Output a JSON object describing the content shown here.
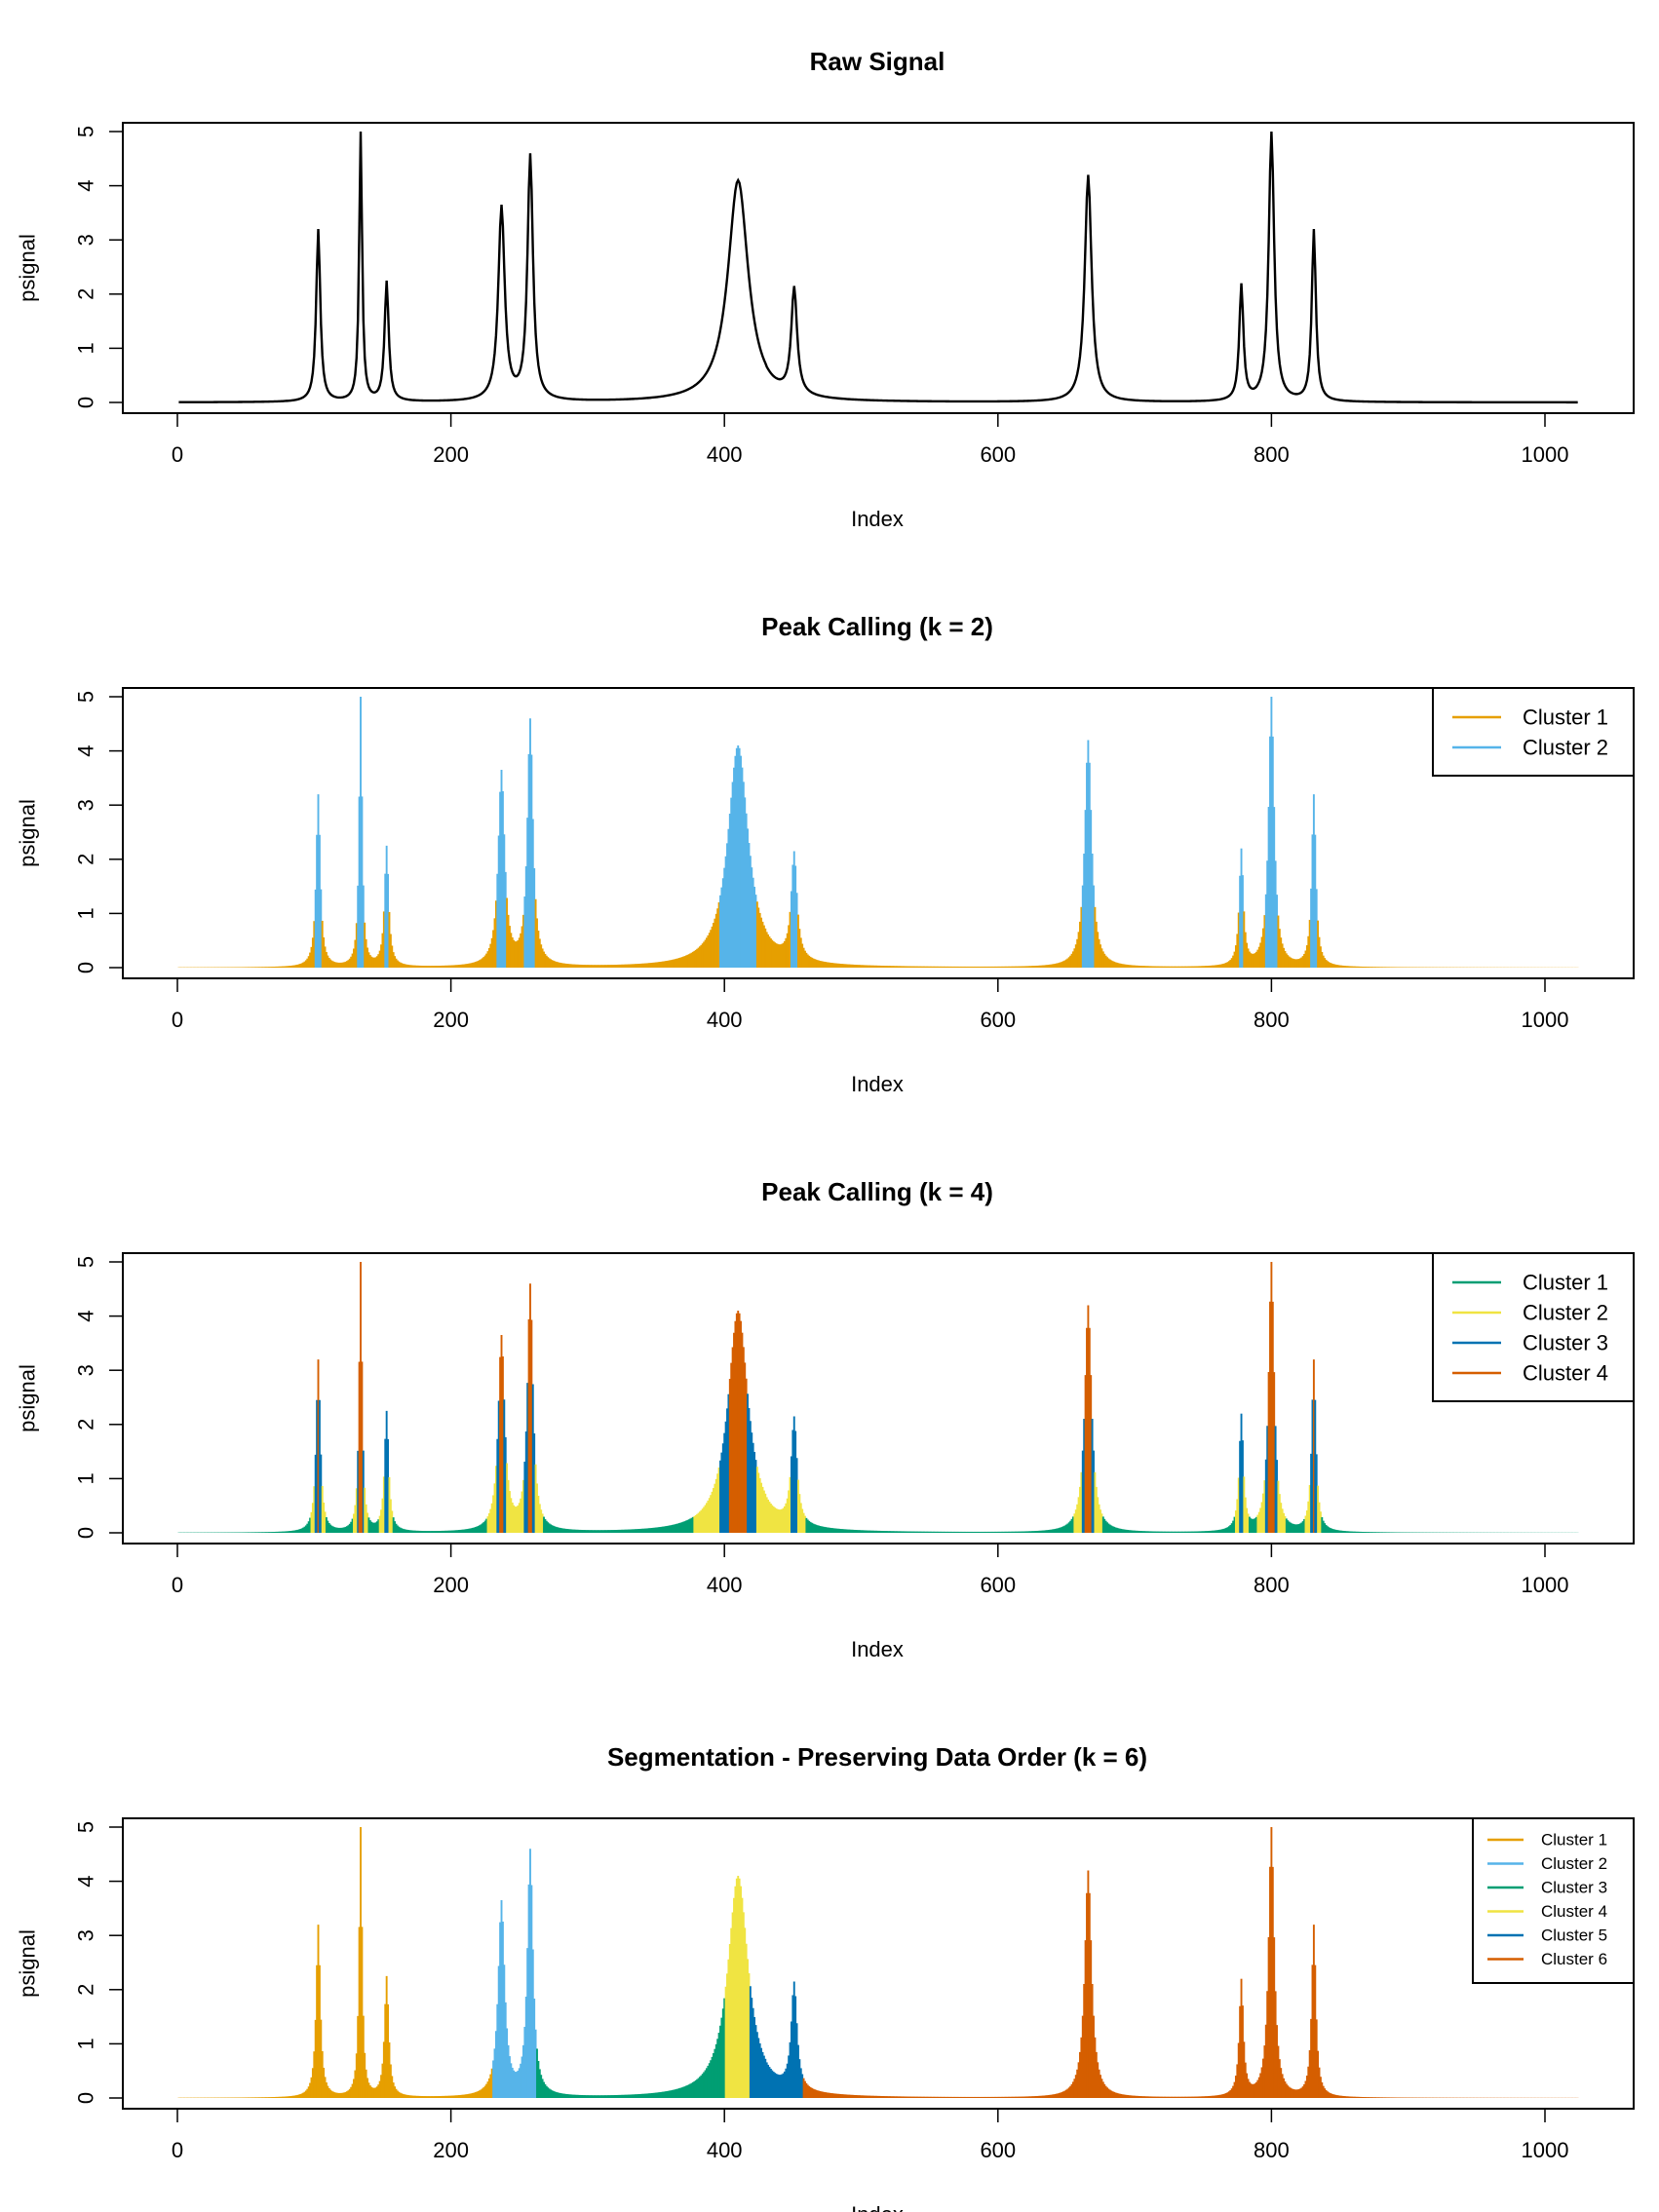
{
  "colors": {
    "black": "#000000",
    "orange": "#E69F00",
    "skyblue": "#56B4E9",
    "green": "#009E73",
    "yellow": "#F0E442",
    "blue": "#0072B2",
    "vermillion": "#D55E00"
  },
  "chart_data": [
    {
      "type": "line",
      "title": "Raw Signal",
      "xlabel": "Index",
      "ylabel": "psignal",
      "xlim": [
        1,
        1024
      ],
      "ylim": [
        0,
        5
      ],
      "xticks": [
        "0",
        "200",
        "400",
        "600",
        "800",
        "1000"
      ],
      "yticks": [
        "0",
        "1",
        "2",
        "3",
        "4",
        "5"
      ],
      "signal_peaks": [
        {
          "x": 103,
          "y": 3.2
        },
        {
          "x": 134,
          "y": 5.0
        },
        {
          "x": 153,
          "y": 2.25
        },
        {
          "x": 237,
          "y": 3.65
        },
        {
          "x": 258,
          "y": 4.6
        },
        {
          "x": 410,
          "y": 4.1
        },
        {
          "x": 451,
          "y": 2.15
        },
        {
          "x": 666,
          "y": 4.2
        },
        {
          "x": 778,
          "y": 2.2
        },
        {
          "x": 800,
          "y": 5.0
        },
        {
          "x": 831,
          "y": 3.2
        }
      ],
      "color": "#000000"
    },
    {
      "type": "bar",
      "title": "Peak Calling (k = 2)",
      "xlabel": "Index",
      "ylabel": "psignal",
      "xlim": [
        1,
        1024
      ],
      "ylim": [
        0,
        5
      ],
      "xticks": [
        "0",
        "200",
        "400",
        "600",
        "800",
        "1000"
      ],
      "yticks": [
        "0",
        "1",
        "2",
        "3",
        "4",
        "5"
      ],
      "legend": "top-right",
      "clustering": "by value",
      "series": [
        {
          "name": "Cluster 1",
          "color": "#E69F00",
          "value_range": [
            0,
            1.3
          ]
        },
        {
          "name": "Cluster 2",
          "color": "#56B4E9",
          "value_range": [
            1.3,
            5
          ]
        }
      ]
    },
    {
      "type": "bar",
      "title": "Peak Calling (k = 4)",
      "xlabel": "Index",
      "ylabel": "psignal",
      "xlim": [
        1,
        1024
      ],
      "ylim": [
        0,
        5
      ],
      "xticks": [
        "0",
        "200",
        "400",
        "600",
        "800",
        "1000"
      ],
      "yticks": [
        "0",
        "1",
        "2",
        "3",
        "4",
        "5"
      ],
      "legend": "top-right",
      "clustering": "by value",
      "series": [
        {
          "name": "Cluster 1",
          "color": "#009E73",
          "value_range": [
            0,
            0.3
          ]
        },
        {
          "name": "Cluster 2",
          "color": "#F0E442",
          "value_range": [
            0.3,
            1.3
          ]
        },
        {
          "name": "Cluster 3",
          "color": "#0072B2",
          "value_range": [
            1.3,
            2.8
          ]
        },
        {
          "name": "Cluster 4",
          "color": "#D55E00",
          "value_range": [
            2.8,
            5
          ]
        }
      ]
    },
    {
      "type": "bar",
      "title": "Segmentation - Preserving Data Order (k = 6)",
      "xlabel": "Index",
      "ylabel": "psignal",
      "xlim": [
        1,
        1024
      ],
      "ylim": [
        0,
        5
      ],
      "xticks": [
        "0",
        "200",
        "400",
        "600",
        "800",
        "1000"
      ],
      "yticks": [
        "0",
        "1",
        "2",
        "3",
        "4",
        "5"
      ],
      "legend": "top-right",
      "clustering": "by index segment",
      "series": [
        {
          "name": "Cluster 1",
          "color": "#E69F00",
          "index_range": [
            1,
            230
          ]
        },
        {
          "name": "Cluster 2",
          "color": "#56B4E9",
          "index_range": [
            231,
            262
          ]
        },
        {
          "name": "Cluster 3",
          "color": "#009E73",
          "index_range": [
            263,
            400
          ]
        },
        {
          "name": "Cluster 4",
          "color": "#F0E442",
          "index_range": [
            401,
            418
          ]
        },
        {
          "name": "Cluster 5",
          "color": "#0072B2",
          "index_range": [
            419,
            457
          ]
        },
        {
          "name": "Cluster 6",
          "color": "#D55E00",
          "index_range": [
            458,
            1024
          ]
        }
      ]
    }
  ]
}
